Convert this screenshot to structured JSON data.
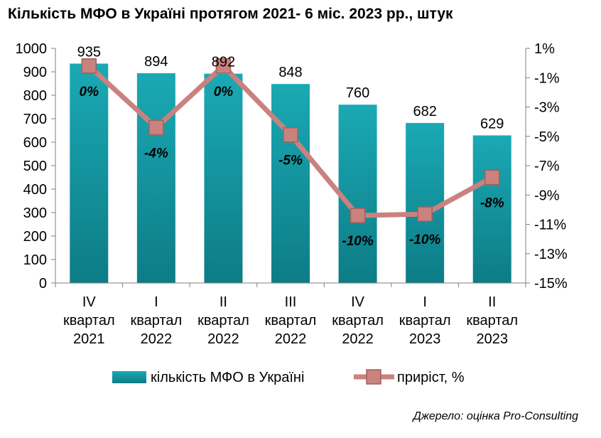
{
  "chart_data": {
    "type": "bar",
    "title": "Кількість МФО в Україні протягом 2021- 6 міс. 2023 рр., штук",
    "categories": [
      [
        "IV",
        "квартал",
        "2021"
      ],
      [
        "I",
        "квартал",
        "2022"
      ],
      [
        "II",
        "квартал",
        "2022"
      ],
      [
        "III",
        "квартал",
        "2022"
      ],
      [
        "IV",
        "квартал",
        "2022"
      ],
      [
        "I",
        "квартал",
        "2023"
      ],
      [
        "II",
        "квартал",
        "2023"
      ]
    ],
    "series": [
      {
        "name": "кількість МФО в Україні",
        "type": "bar",
        "axis": "left",
        "values": [
          935,
          894,
          892,
          848,
          760,
          682,
          629
        ],
        "labels": [
          "935",
          "894",
          "892",
          "848",
          "760",
          "682",
          "629"
        ],
        "color": "#1a9ba6"
      },
      {
        "name": "приріст, %",
        "type": "line",
        "axis": "right",
        "values": [
          -0.2,
          -4.4,
          -0.2,
          -4.9,
          -10.4,
          -10.3,
          -7.8
        ],
        "labels": [
          "0%",
          "-4%",
          "0%",
          "-5%",
          "-10%",
          "-10%",
          "-8%"
        ],
        "color": "#c9827e"
      }
    ],
    "y_left": {
      "min": 0,
      "max": 1000,
      "step": 100,
      "ticks": [
        "0",
        "100",
        "200",
        "300",
        "400",
        "500",
        "600",
        "700",
        "800",
        "900",
        "1000"
      ]
    },
    "y_right": {
      "min": -15,
      "max": 1,
      "step": 2,
      "ticks": [
        "-15%",
        "-13%",
        "-11%",
        "-9%",
        "-7%",
        "-5%",
        "-3%",
        "-1%",
        "1%"
      ]
    },
    "grid": false,
    "legend": "bottom",
    "source": "Джерело: оцінка Pro-Consulting"
  }
}
